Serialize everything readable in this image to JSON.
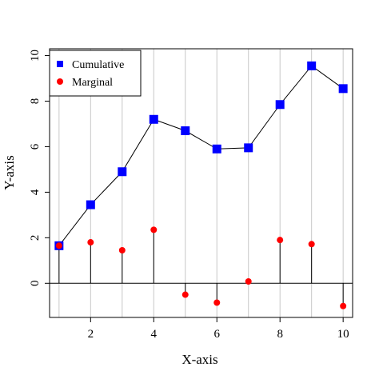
{
  "chart_data": {
    "type": "line",
    "xlabel": "X-axis",
    "ylabel": "Y-axis",
    "xlim": [
      0.7,
      10.3
    ],
    "ylim": [
      -1.5,
      10.3
    ],
    "x_ticks": [
      2,
      4,
      6,
      8,
      10
    ],
    "y_ticks": [
      0,
      2,
      4,
      6,
      8,
      10
    ],
    "vertical_grid_at": [
      1,
      2,
      3,
      4,
      5,
      6,
      7,
      8,
      9,
      10
    ],
    "horizontal_reference_line": 0,
    "legend_position": "top-left",
    "x": [
      1,
      2,
      3,
      4,
      5,
      6,
      7,
      8,
      9,
      10
    ],
    "series": [
      {
        "name": "Cumulative",
        "values": [
          1.65,
          3.45,
          4.9,
          7.2,
          6.7,
          5.9,
          5.95,
          7.85,
          9.55,
          8.55
        ],
        "color": "#0000ff",
        "marker": "square",
        "style": "line-with-markers"
      },
      {
        "name": "Marginal",
        "values": [
          1.65,
          1.8,
          1.45,
          2.35,
          -0.5,
          -0.85,
          0.08,
          1.9,
          1.72,
          -1.0
        ],
        "color": "#ff0000",
        "marker": "circle",
        "style": "stems-from-zero"
      }
    ]
  }
}
